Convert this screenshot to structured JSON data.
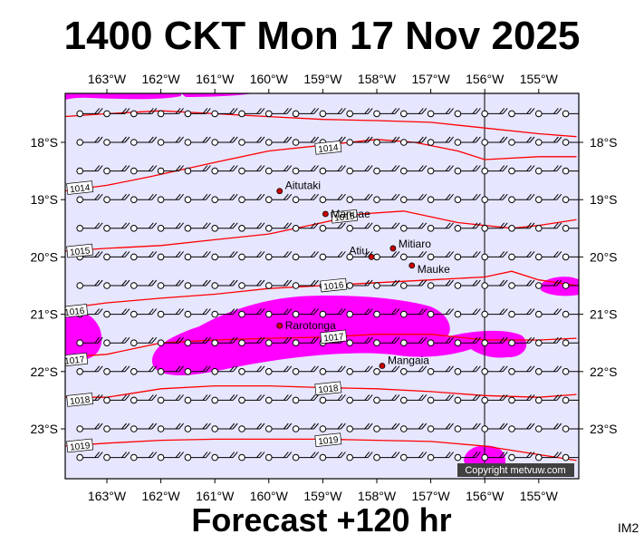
{
  "title": "1400 CKT Mon 17 Nov 2025",
  "footer": "Forecast +120 hr",
  "image_code": "IM2",
  "copyright": "Copyright metvuw.com",
  "colors": {
    "map_background": "#e6e6ff",
    "isobar": "#ff0000",
    "rain": "#ff00ff",
    "town_marker": "#cc0000",
    "meridian": "#000000"
  },
  "axes": {
    "longitudes": [
      -163,
      -162,
      -161,
      -160,
      -159,
      -158,
      -157,
      -156,
      -155
    ],
    "longitude_labels": [
      "163°W",
      "162°W",
      "161°W",
      "160°W",
      "159°W",
      "158°W",
      "157°W",
      "156°W",
      "155°W"
    ],
    "latitudes": [
      -18,
      -19,
      -20,
      -21,
      -22,
      -23
    ],
    "latitude_labels": [
      "18°S",
      "19°S",
      "20°S",
      "21°S",
      "22°S",
      "23°S"
    ]
  },
  "towns": [
    {
      "name": "Aitutaki",
      "lon": -159.8,
      "lat": -18.85
    },
    {
      "name": "Manuae",
      "lon": -158.95,
      "lat": -19.25
    },
    {
      "name": "Mitiaro",
      "lon": -157.7,
      "lat": -19.85
    },
    {
      "name": "Atiu",
      "lon": -158.1,
      "lat": -20.0
    },
    {
      "name": "Mauke",
      "lon": -157.35,
      "lat": -20.15
    },
    {
      "name": "Rarotonga",
      "lon": -159.8,
      "lat": -21.2
    },
    {
      "name": "Mangaia",
      "lon": -157.9,
      "lat": -21.9
    }
  ],
  "isobar_labels": [
    {
      "text": "1014",
      "lon": -158.9,
      "lat": -18.1
    },
    {
      "text": "1014",
      "lon": -163.5,
      "lat": -18.8
    },
    {
      "text": "1015",
      "lon": -158.6,
      "lat": -19.3
    },
    {
      "text": "1015",
      "lon": -163.5,
      "lat": -19.9
    },
    {
      "text": "1016",
      "lon": -158.8,
      "lat": -20.5
    },
    {
      "text": "1016",
      "lon": -163.6,
      "lat": -20.95
    },
    {
      "text": "1017",
      "lon": -158.8,
      "lat": -21.4
    },
    {
      "text": "1017",
      "lon": -163.6,
      "lat": -21.8
    },
    {
      "text": "1018",
      "lon": -158.9,
      "lat": -22.3
    },
    {
      "text": "1018",
      "lon": -163.5,
      "lat": -22.5
    },
    {
      "text": "1019",
      "lon": -158.9,
      "lat": -23.2
    },
    {
      "text": "1019",
      "lon": -163.5,
      "lat": -23.3
    }
  ]
}
